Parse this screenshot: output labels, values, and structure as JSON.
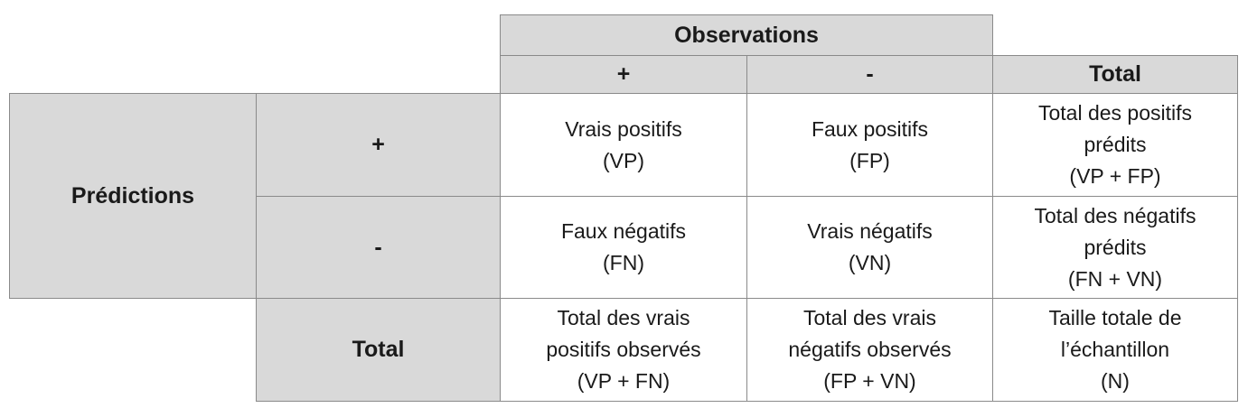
{
  "table": {
    "header": {
      "observations_label": "Observations",
      "col_plus": "+",
      "col_minus": "-",
      "col_total": "Total"
    },
    "rows": {
      "predictions_label": "Prédictions",
      "row_plus": "+",
      "row_minus": "-",
      "row_total": "Total"
    },
    "cells": {
      "vp": [
        "Vrais positifs",
        "(VP)"
      ],
      "fp": [
        "Faux positifs",
        "(FP)"
      ],
      "total_pred_pos": [
        "Total des positifs",
        "prédits",
        "(VP + FP)"
      ],
      "fn": [
        "Faux négatifs",
        "(FN)"
      ],
      "vn": [
        "Vrais négatifs",
        "(VN)"
      ],
      "total_pred_neg": [
        "Total des négatifs",
        "prédits",
        "(FN + VN)"
      ],
      "total_obs_pos": [
        "Total des vrais",
        "positifs observés",
        "(VP + FN)"
      ],
      "total_obs_neg": [
        "Total des vrais",
        "négatifs observés",
        "(FP + VN)"
      ],
      "sample_size": [
        "Taille totale de",
        "l’échantillon",
        "(N)"
      ]
    }
  }
}
